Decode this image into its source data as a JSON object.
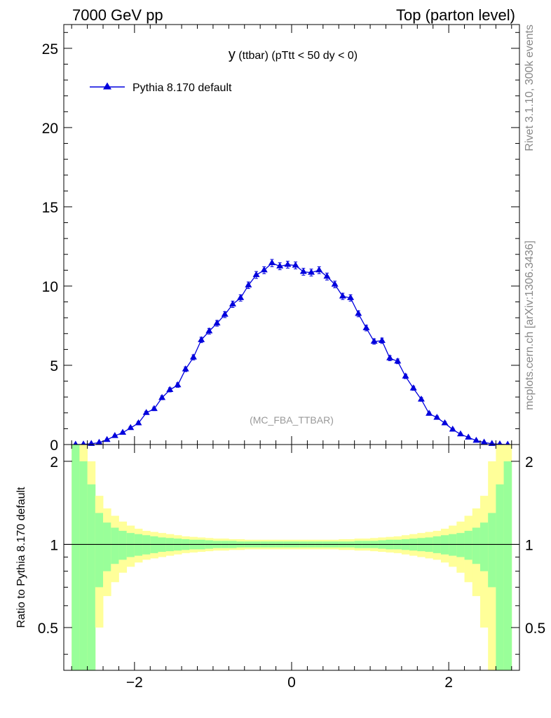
{
  "header": {
    "left": "7000 GeV pp",
    "right": "Top (parton level)"
  },
  "side_labels": {
    "top": "Rivet 3.1.10,  300k events",
    "bottom": "mcplots.cern.ch [arXiv:1306.3436]"
  },
  "plot_title": {
    "main": "y",
    "rest": " (ttbar) (pTtt < 50 dy < 0)"
  },
  "watermark": "(MC_FBA_TTBAR)",
  "legend": {
    "entry": "Pythia 8.170 default"
  },
  "ratio_ylabel": "Ratio to Pythia 8.170 default",
  "colors": {
    "series": "#0000dd",
    "band_inner": "#99ff99",
    "band_outer": "#ffff99"
  },
  "chart_data": [
    {
      "type": "line",
      "xlim": [
        -2.9,
        2.9
      ],
      "ylim": [
        0,
        26.5
      ],
      "y_ticks": [
        0,
        5,
        10,
        15,
        20,
        25
      ],
      "x_ticks": [
        -2,
        0,
        2
      ],
      "series": [
        {
          "name": "Pythia 8.170 default",
          "marker": "triangle",
          "x": [
            -2.75,
            -2.65,
            -2.55,
            -2.45,
            -2.35,
            -2.25,
            -2.15,
            -2.05,
            -1.95,
            -1.85,
            -1.75,
            -1.65,
            -1.55,
            -1.45,
            -1.35,
            -1.25,
            -1.15,
            -1.05,
            -0.95,
            -0.85,
            -0.75,
            -0.65,
            -0.55,
            -0.45,
            -0.35,
            -0.25,
            -0.15,
            -0.05,
            0.05,
            0.15,
            0.25,
            0.35,
            0.45,
            0.55,
            0.65,
            0.75,
            0.85,
            0.95,
            1.05,
            1.15,
            1.25,
            1.35,
            1.45,
            1.55,
            1.65,
            1.75,
            1.85,
            1.95,
            2.05,
            2.15,
            2.25,
            2.35,
            2.45,
            2.55,
            2.65,
            2.75
          ],
          "y": [
            0.0,
            0.01,
            0.05,
            0.12,
            0.3,
            0.55,
            0.75,
            1.05,
            1.35,
            2.0,
            2.25,
            2.95,
            3.45,
            3.75,
            4.75,
            5.5,
            6.6,
            7.15,
            7.65,
            8.2,
            8.85,
            9.25,
            10.05,
            10.7,
            11.0,
            11.45,
            11.25,
            11.35,
            11.3,
            10.9,
            10.85,
            11.0,
            10.6,
            10.1,
            9.35,
            9.25,
            8.25,
            7.35,
            6.5,
            6.55,
            5.45,
            5.25,
            4.3,
            3.55,
            2.85,
            1.95,
            1.7,
            1.35,
            0.95,
            0.65,
            0.45,
            0.25,
            0.13,
            0.05,
            0.02,
            0.0
          ],
          "err": [
            0,
            0.01,
            0.02,
            0.04,
            0.05,
            0.06,
            0.07,
            0.08,
            0.09,
            0.1,
            0.11,
            0.12,
            0.13,
            0.14,
            0.15,
            0.16,
            0.17,
            0.18,
            0.18,
            0.19,
            0.2,
            0.2,
            0.21,
            0.22,
            0.22,
            0.23,
            0.22,
            0.22,
            0.22,
            0.22,
            0.22,
            0.22,
            0.22,
            0.21,
            0.2,
            0.2,
            0.19,
            0.18,
            0.17,
            0.17,
            0.16,
            0.15,
            0.14,
            0.13,
            0.12,
            0.1,
            0.1,
            0.09,
            0.08,
            0.07,
            0.06,
            0.05,
            0.04,
            0.02,
            0.01,
            0
          ]
        }
      ]
    },
    {
      "type": "area",
      "ylim": [
        0.35,
        2.3
      ],
      "y_scale": "log",
      "y_ticks": [
        0.5,
        1,
        2
      ],
      "x_ticks": [
        -2,
        0,
        2
      ],
      "bin_edges": [
        -2.8,
        -2.7,
        -2.6,
        -2.5,
        -2.4,
        -2.3,
        -2.2,
        -2.1,
        -2.0,
        -1.9,
        -1.8,
        -1.7,
        -1.6,
        -1.5,
        -1.4,
        -1.3,
        -1.2,
        -1.1,
        -1.0,
        -0.9,
        -0.8,
        -0.7,
        -0.6,
        -0.5,
        -0.4,
        -0.3,
        -0.2,
        -0.1,
        0.0,
        0.1,
        0.2,
        0.3,
        0.4,
        0.5,
        0.6,
        0.7,
        0.8,
        0.9,
        1.0,
        1.1,
        1.2,
        1.3,
        1.4,
        1.5,
        1.6,
        1.7,
        1.8,
        1.9,
        2.0,
        2.1,
        2.2,
        2.3,
        2.4,
        2.5,
        2.6,
        2.7,
        2.8
      ],
      "band_inner_half": [
        1.5,
        1.0,
        0.65,
        0.3,
        0.2,
        0.15,
        0.12,
        0.1,
        0.09,
        0.08,
        0.07,
        0.06,
        0.055,
        0.05,
        0.045,
        0.04,
        0.04,
        0.035,
        0.03,
        0.03,
        0.03,
        0.025,
        0.025,
        0.025,
        0.025,
        0.025,
        0.025,
        0.025,
        0.025,
        0.025,
        0.025,
        0.025,
        0.025,
        0.025,
        0.025,
        0.025,
        0.03,
        0.03,
        0.03,
        0.035,
        0.04,
        0.04,
        0.045,
        0.05,
        0.055,
        0.06,
        0.07,
        0.08,
        0.09,
        0.1,
        0.12,
        0.15,
        0.2,
        0.3,
        0.65,
        1.0
      ],
      "band_outer_half": [
        2.0,
        1.5,
        1.0,
        0.5,
        0.35,
        0.27,
        0.21,
        0.17,
        0.14,
        0.12,
        0.11,
        0.1,
        0.09,
        0.08,
        0.07,
        0.065,
        0.06,
        0.055,
        0.05,
        0.05,
        0.045,
        0.045,
        0.04,
        0.04,
        0.04,
        0.04,
        0.04,
        0.04,
        0.04,
        0.04,
        0.04,
        0.04,
        0.04,
        0.04,
        0.045,
        0.045,
        0.05,
        0.05,
        0.055,
        0.06,
        0.065,
        0.07,
        0.08,
        0.09,
        0.1,
        0.11,
        0.12,
        0.14,
        0.17,
        0.21,
        0.27,
        0.35,
        0.5,
        1.0,
        1.5,
        2.0
      ],
      "reference_line": 1
    }
  ]
}
